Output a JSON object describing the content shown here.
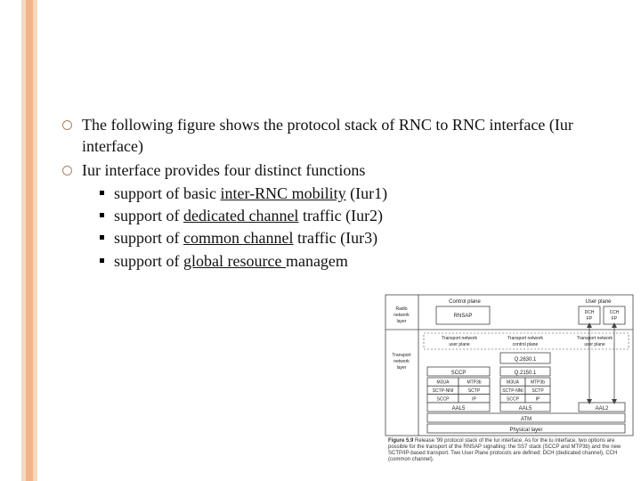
{
  "stripes": {
    "outer_color": "#f6d8c0",
    "inner_color": "#f0b488"
  },
  "bullets": [
    {
      "text_parts": [
        {
          "t": "The following figure shows the protocol stack of RNC to RNC interface (Iur interface)"
        }
      ]
    },
    {
      "text_parts": [
        {
          "t": "Iur interface provides four distinct functions"
        }
      ],
      "sub": [
        [
          {
            "t": "support of basic "
          },
          {
            "t": "inter-RNC mobility",
            "u": true
          },
          {
            "t": " (Iur1)"
          }
        ],
        [
          {
            "t": "support of "
          },
          {
            "t": "dedicated channel",
            "u": true
          },
          {
            "t": " traffic (Iur2)"
          }
        ],
        [
          {
            "t": "support of "
          },
          {
            "t": "common channel",
            "u": true
          },
          {
            "t": " traffic (Iur3)"
          }
        ],
        [
          {
            "t": "support of "
          },
          {
            "t": "global resource ",
            "u": true
          },
          {
            "t": "managem"
          }
        ]
      ]
    }
  ],
  "diagram": {
    "col_headers": [
      "Radio network layer",
      "Control plane",
      "",
      "User plane"
    ],
    "row_left": [
      "Radio network layer",
      "Transport network layer"
    ],
    "sub_headers": [
      "Transport network user plane",
      "Transport network control plane",
      "Transport network user plane"
    ],
    "boxes": {
      "rnsap": "RNSAP",
      "dch": "DCH FP",
      "cch": "CCH FP",
      "q2630": "Q.2630.1",
      "sccp": "SCCP",
      "q2150": "Q.2150.1",
      "row1": [
        "M3UA",
        "MTP3b",
        "M3UA",
        "MTP3b"
      ],
      "row2": [
        "SCTP-NNI",
        "SCTP",
        "SCTP-NNI",
        "SCTP"
      ],
      "row3": [
        "SCCP",
        "IP",
        "SCCP",
        "IP"
      ],
      "aal5_l": "AAL5",
      "aal5_r": "AAL5",
      "aal2": "AAL2",
      "atm": "ATM",
      "phys": "Physical layer"
    },
    "caption_bold": "Figure 5.9",
    "caption_rest": "  Release '99 protocol stack of the Iur interface. As for the Iu interface, two options are possible for the transport of the RNSAP signalling: the SS7 stack (SCCP and MTP3b) and the new SCTP/IP-based transport. Two User Plane protocols are defined: DCH (dedicated channel), CCH (common channel)."
  },
  "style": {
    "body_fontsize": 18,
    "text_color": "#111111",
    "bullet_ring_color": "#b08060"
  }
}
